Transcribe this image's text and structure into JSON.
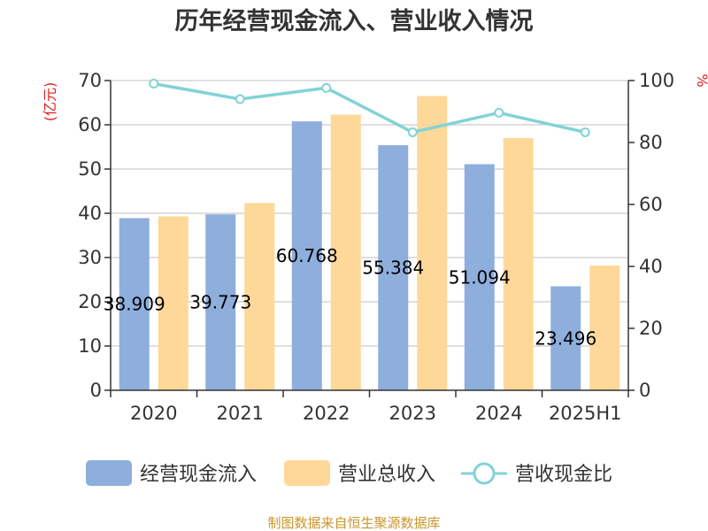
{
  "chart_data": {
    "type": "bar",
    "title": "历年经营现金流入、营业收入情况",
    "categories": [
      "2020",
      "2021",
      "2022",
      "2023",
      "2024",
      "2025H1"
    ],
    "y_left": {
      "unit": "(亿元)",
      "min": 0,
      "max": 70,
      "step": 10,
      "ticks": [
        "0",
        "10",
        "20",
        "30",
        "40",
        "50",
        "60",
        "70"
      ]
    },
    "y_right": {
      "unit": "%",
      "min": 0,
      "max": 100,
      "step": 20,
      "ticks": [
        "0",
        "20",
        "40",
        "60",
        "80",
        "100"
      ]
    },
    "grid": true,
    "legend_position": "bottom",
    "series": [
      {
        "name": "经营现金流入",
        "kind": "bar",
        "axis": "left",
        "color": "#8eaedc",
        "values": [
          38.909,
          39.773,
          60.768,
          55.384,
          51.094,
          23.496
        ],
        "labels": [
          "38.909",
          "39.773",
          "60.768",
          "55.384",
          "51.094",
          "23.496"
        ]
      },
      {
        "name": "营业总收入",
        "kind": "bar",
        "axis": "left",
        "color": "#fed898",
        "values": [
          39.3,
          42.3,
          62.3,
          66.5,
          57.0,
          28.2
        ]
      },
      {
        "name": "营收现金比",
        "kind": "line",
        "axis": "right",
        "color": "#82d3d5",
        "values": [
          99.0,
          94.0,
          97.6,
          83.3,
          89.6,
          83.3
        ]
      }
    ]
  },
  "footer": {
    "source": "制图数据来自恒生聚源数据库"
  }
}
